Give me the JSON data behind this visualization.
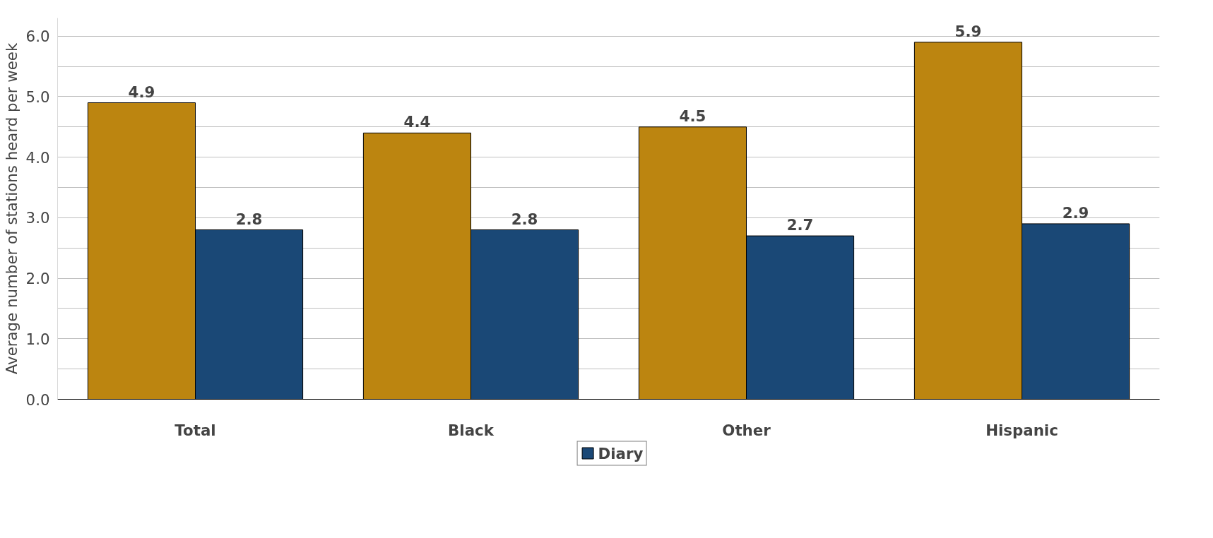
{
  "chart_data": {
    "type": "bar",
    "ylabel": "Average number of stations heard per week",
    "categories": [
      "Total",
      "Black",
      "Other",
      "Hispanic"
    ],
    "series": [
      {
        "color": "#bc8510",
        "values": [
          4.9,
          4.4,
          4.5,
          5.9
        ]
      },
      {
        "name": "Diary",
        "color": "#1a4876",
        "values": [
          2.8,
          2.8,
          2.7,
          2.9
        ]
      }
    ],
    "ylim": [
      0,
      6.3
    ],
    "yticks": [
      {
        "value": 0,
        "label": "0.0"
      },
      {
        "value": 0.5,
        "label": null
      },
      {
        "value": 1,
        "label": "1.0"
      },
      {
        "value": 1.5,
        "label": null
      },
      {
        "value": 2,
        "label": "2.0"
      },
      {
        "value": 2.5,
        "label": null
      },
      {
        "value": 3,
        "label": "3.0"
      },
      {
        "value": 3.5,
        "label": null
      },
      {
        "value": 4,
        "label": "4.0"
      },
      {
        "value": 4.5,
        "label": null
      },
      {
        "value": 5,
        "label": "5.0"
      },
      {
        "value": 5.5,
        "label": null
      },
      {
        "value": 6,
        "label": "6.0"
      }
    ],
    "grid": "y",
    "legend": "bottom",
    "data_labels": true
  }
}
